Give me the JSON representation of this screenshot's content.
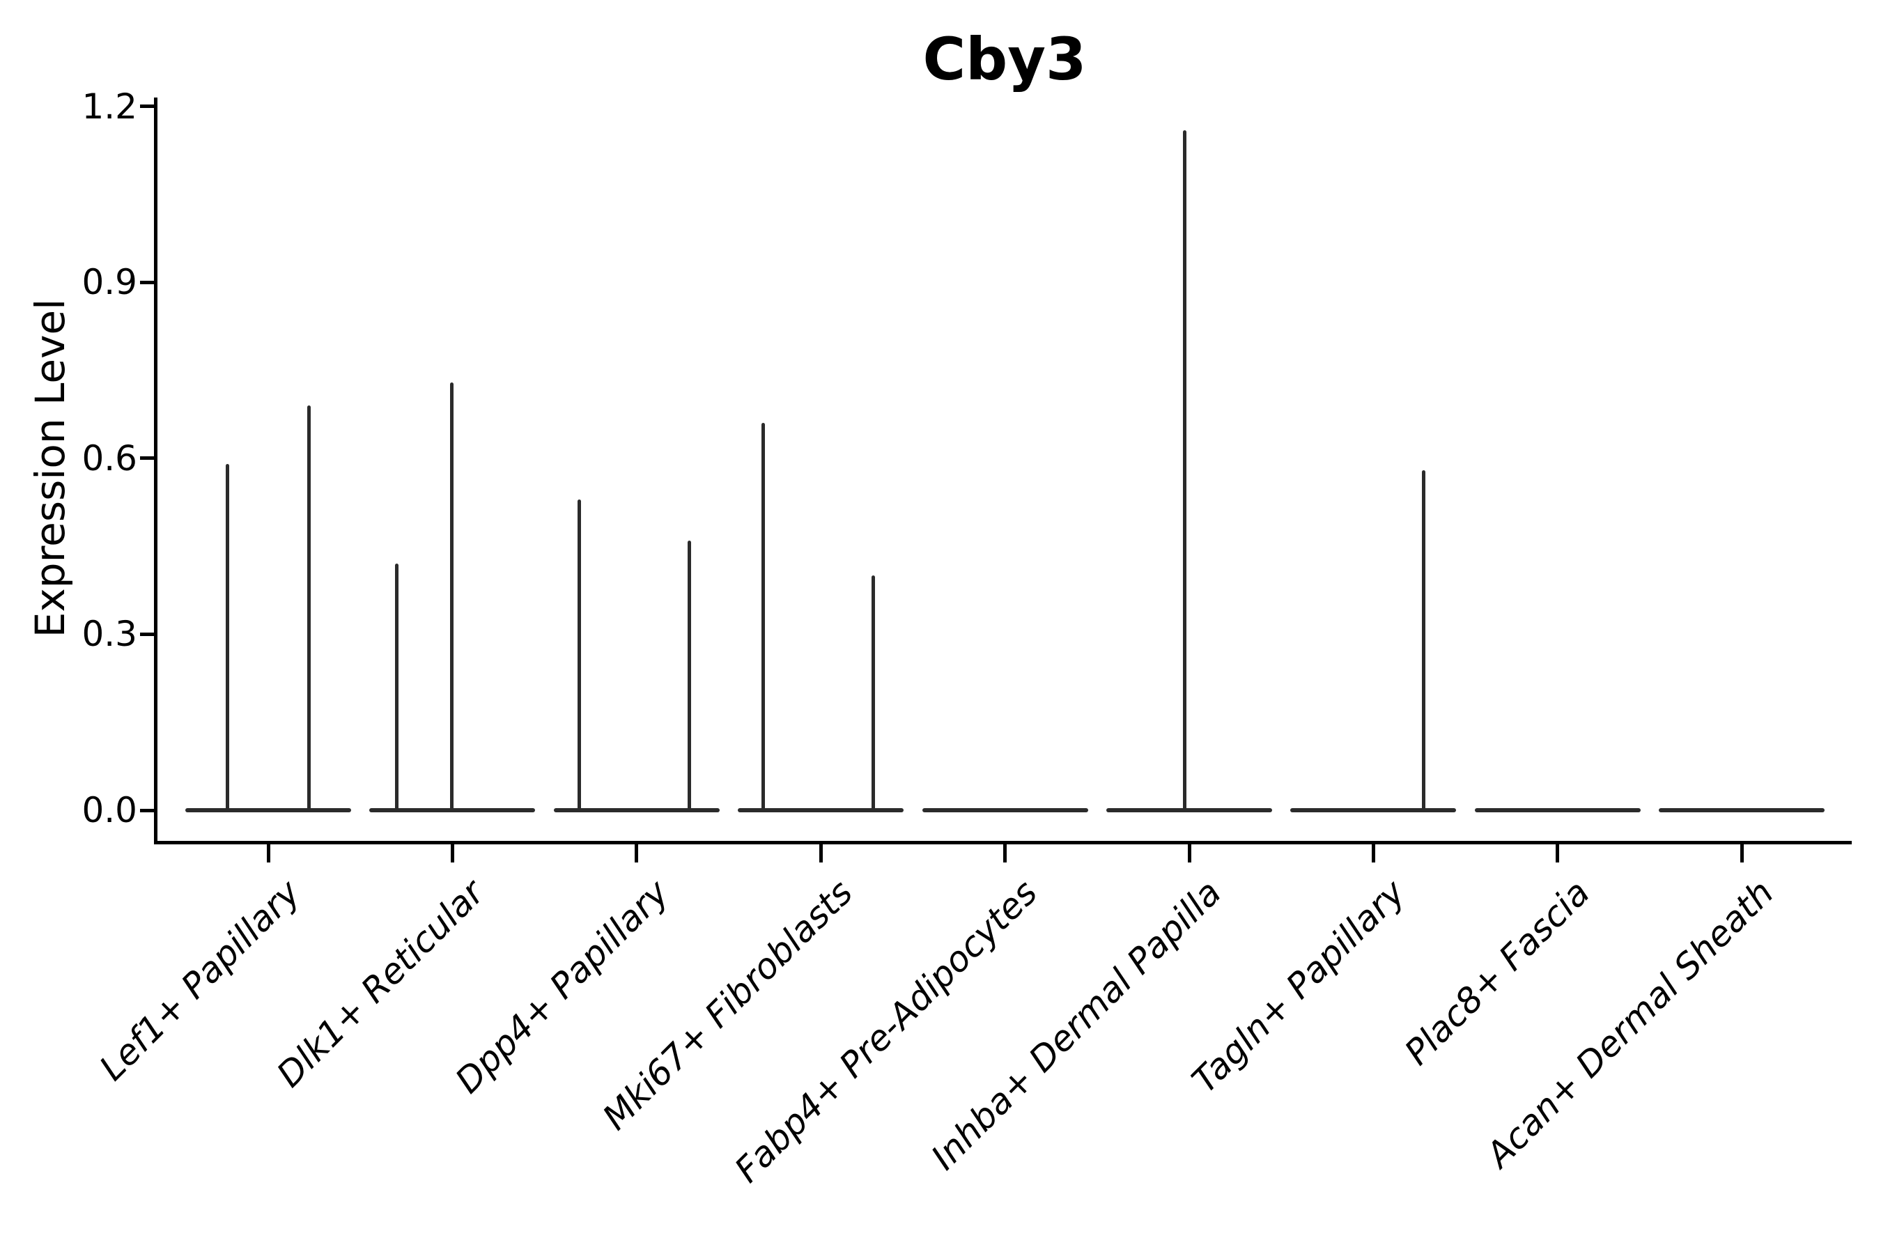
{
  "chart_data": {
    "type": "violin",
    "title": "Cby3",
    "ylabel": "Expression Level",
    "xlabel": "",
    "ylim": [
      0,
      1.26
    ],
    "ytick_labels": [
      "0.0",
      "0.3",
      "0.6",
      "0.9",
      "1.2"
    ],
    "ytick_values": [
      0.0,
      0.3,
      0.6,
      0.9,
      1.2
    ],
    "grid": false,
    "legend": "none",
    "background": "#ffffff",
    "violin_color": "#2b2b2b",
    "axis_color": "#000000",
    "categories": [
      "Lef1+ Papillary",
      "Dlk1+ Reticular",
      "Dpp4+ Papillary",
      "Mki67+ Fibroblasts",
      "Fabp4+ Pre-Adipocytes",
      "Inhba+ Dermal Papilla",
      "Tagln+ Papillary",
      "Plac8+ Fascia",
      "Acan+ Dermal Sheath"
    ],
    "violins": [
      {
        "category": "Lef1+ Papillary",
        "zero_base": true,
        "spikes": [
          {
            "offset": -59,
            "max": 0.59
          },
          {
            "offset": 58,
            "max": 0.69
          }
        ]
      },
      {
        "category": "Dlk1+ Reticular",
        "zero_base": true,
        "spikes": [
          {
            "offset": -80,
            "max": 0.42
          },
          {
            "offset": -1,
            "max": 0.73
          }
        ]
      },
      {
        "category": "Dpp4+ Papillary",
        "zero_base": true,
        "spikes": [
          {
            "offset": -82,
            "max": 0.53
          },
          {
            "offset": 76,
            "max": 0.46
          }
        ]
      },
      {
        "category": "Mki67+ Fibroblasts",
        "zero_base": true,
        "spikes": [
          {
            "offset": -83,
            "max": 0.66
          },
          {
            "offset": 75,
            "max": 0.4
          }
        ]
      },
      {
        "category": "Fabp4+ Pre-Adipocytes",
        "zero_base": true,
        "spikes": []
      },
      {
        "category": "Inhba+ Dermal Papilla",
        "zero_base": true,
        "spikes": [
          {
            "offset": -7,
            "max": 1.16
          }
        ]
      },
      {
        "category": "Tagln+ Papillary",
        "zero_base": true,
        "spikes": [
          {
            "offset": 72,
            "max": 0.58
          }
        ]
      },
      {
        "category": "Plac8+ Fascia",
        "zero_base": true,
        "spikes": []
      },
      {
        "category": "Acan+ Dermal Sheath",
        "zero_base": true,
        "spikes": []
      }
    ]
  }
}
